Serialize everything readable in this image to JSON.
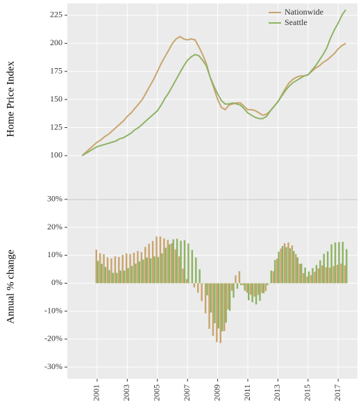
{
  "chart_data": [
    {
      "type": "line",
      "ylabel": "Home Price Index",
      "x": [
        2000,
        2000.25,
        2000.5,
        2000.75,
        2001,
        2001.25,
        2001.5,
        2001.75,
        2002,
        2002.25,
        2002.5,
        2002.75,
        2003,
        2003.25,
        2003.5,
        2003.75,
        2004,
        2004.25,
        2004.5,
        2004.75,
        2005,
        2005.25,
        2005.5,
        2005.75,
        2006,
        2006.25,
        2006.5,
        2006.75,
        2007,
        2007.25,
        2007.5,
        2007.75,
        2008,
        2008.25,
        2008.5,
        2008.75,
        2009,
        2009.25,
        2009.5,
        2009.75,
        2010,
        2010.25,
        2010.5,
        2010.75,
        2011,
        2011.25,
        2011.5,
        2011.75,
        2012,
        2012.25,
        2012.5,
        2012.75,
        2013,
        2013.25,
        2013.5,
        2013.75,
        2014,
        2014.25,
        2014.5,
        2014.75,
        2015,
        2015.25,
        2015.5,
        2015.75,
        2016,
        2016.25,
        2016.5,
        2016.75,
        2017,
        2017.25,
        2017.5
      ],
      "series": [
        {
          "name": "Nationwide",
          "color": "#c9a46c",
          "values": [
            100,
            103,
            106,
            109,
            112,
            114,
            117,
            119,
            122,
            125,
            128,
            131,
            135,
            138,
            142,
            146,
            150,
            156,
            162,
            168,
            175,
            182,
            188,
            194,
            200,
            204,
            206,
            204,
            203,
            204,
            203,
            197,
            190,
            182,
            170,
            160,
            150,
            143,
            141,
            145,
            146,
            147,
            147,
            144,
            141,
            141,
            140,
            138,
            136,
            137,
            140,
            144,
            148,
            154,
            160,
            165,
            168,
            170,
            171,
            171,
            172,
            175,
            178,
            180,
            183,
            185,
            188,
            191,
            195,
            198,
            200
          ]
        },
        {
          "name": "Seattle",
          "color": "#8db363",
          "values": [
            100,
            102,
            104,
            106,
            108,
            109,
            110,
            111,
            112,
            113,
            115,
            116,
            118,
            120,
            123,
            125,
            128,
            131,
            134,
            137,
            140,
            145,
            151,
            156,
            162,
            168,
            174,
            180,
            185,
            188,
            190,
            189,
            185,
            180,
            170,
            162,
            155,
            149,
            146,
            146,
            147,
            146,
            145,
            142,
            138,
            136,
            134,
            133,
            133,
            135,
            140,
            144,
            148,
            153,
            158,
            162,
            165,
            167,
            169,
            171,
            172,
            176,
            180,
            185,
            190,
            196,
            205,
            212,
            218,
            225,
            230
          ]
        }
      ],
      "xlim": [
        1999.02,
        2018.28
      ],
      "xticks": [
        2001,
        2003,
        2005,
        2007,
        2009,
        2011,
        2013,
        2015,
        2017
      ],
      "ylim": [
        65.3,
        235.5
      ],
      "yticks": [
        100,
        125,
        150,
        175,
        200,
        225
      ],
      "grid": true,
      "legend": "top-right"
    },
    {
      "type": "bar",
      "ylabel": "Annual % change",
      "x": [
        2001,
        2001.25,
        2001.5,
        2001.75,
        2002,
        2002.25,
        2002.5,
        2002.75,
        2003,
        2003.25,
        2003.5,
        2003.75,
        2004,
        2004.25,
        2004.5,
        2004.75,
        2005,
        2005.25,
        2005.5,
        2005.75,
        2006,
        2006.25,
        2006.5,
        2006.75,
        2007,
        2007.25,
        2007.5,
        2007.75,
        2008,
        2008.25,
        2008.5,
        2008.75,
        2009,
        2009.25,
        2009.5,
        2009.75,
        2010,
        2010.25,
        2010.5,
        2010.75,
        2011,
        2011.25,
        2011.5,
        2011.75,
        2012,
        2012.25,
        2012.5,
        2012.75,
        2013,
        2013.25,
        2013.5,
        2013.75,
        2014,
        2014.25,
        2014.5,
        2014.75,
        2015,
        2015.25,
        2015.5,
        2015.75,
        2016,
        2016.25,
        2016.5,
        2016.75,
        2017,
        2017.25,
        2017.5
      ],
      "series": [
        {
          "name": "Nationwide",
          "color": "#c9a46c",
          "values": [
            12,
            10.7,
            10.4,
            9.2,
            8.9,
            9.6,
            9.4,
            10.1,
            10.7,
            10.4,
            10.9,
            11.5,
            11.1,
            13,
            14.1,
            15.1,
            16.7,
            16.7,
            16,
            15.5,
            14.3,
            12.1,
            9.6,
            5.2,
            1.5,
            0,
            -1.5,
            -3.4,
            -6.4,
            -10.8,
            -16.3,
            -18.8,
            -21.1,
            -21.4,
            -17.1,
            -9.4,
            -2.7,
            2.8,
            4.3,
            -0.7,
            -3.4,
            -4.1,
            -4.8,
            -4.2,
            -3.5,
            -2.8,
            0,
            4.3,
            8.8,
            12.4,
            14.3,
            14.6,
            13.5,
            10.4,
            6.9,
            3.6,
            2.4,
            2.9,
            4.1,
            5.3,
            6.4,
            5.7,
            5.6,
            6.1,
            6.6,
            7,
            6.4
          ]
        },
        {
          "name": "Seattle",
          "color": "#8db363",
          "values": [
            8,
            6.9,
            5.8,
            4.7,
            3.7,
            3.7,
            4.5,
            4.5,
            5.4,
            6.2,
            7,
            7.8,
            8.5,
            9.2,
            8.9,
            9.6,
            9.4,
            10.7,
            12.7,
            13.9,
            15.7,
            15.9,
            15.2,
            15.4,
            14.2,
            11.9,
            9.2,
            5,
            0,
            -4.3,
            -10.5,
            -14.3,
            -16.2,
            -17.2,
            -14.1,
            -9.9,
            -5.2,
            -2,
            -0.7,
            -2.7,
            -6.1,
            -6.8,
            -7.6,
            -6.3,
            -3.6,
            -0.7,
            4.5,
            8.3,
            11.3,
            13.3,
            12.9,
            12.5,
            11.5,
            9.2,
            7,
            5.6,
            4.2,
            5.4,
            6.5,
            8.2,
            10.5,
            11.4,
            13.9,
            14.6,
            14.7,
            14.8,
            12.2
          ]
        }
      ],
      "xlim": [
        1999.02,
        2018.28
      ],
      "xticks": [
        2001,
        2003,
        2005,
        2007,
        2009,
        2011,
        2013,
        2015,
        2017
      ],
      "ylim": [
        -34.2,
        31.7
      ],
      "yticks": [
        {
          "value": -30,
          "label": "-30%"
        },
        {
          "value": -20,
          "label": "-20%"
        },
        {
          "value": -10,
          "label": "-10%"
        },
        {
          "value": 0,
          "label": "0%"
        },
        {
          "value": 10,
          "label": "10%"
        },
        {
          "value": 20,
          "label": "20%"
        },
        {
          "value": 30,
          "label": "30%"
        }
      ],
      "grid": true
    }
  ]
}
